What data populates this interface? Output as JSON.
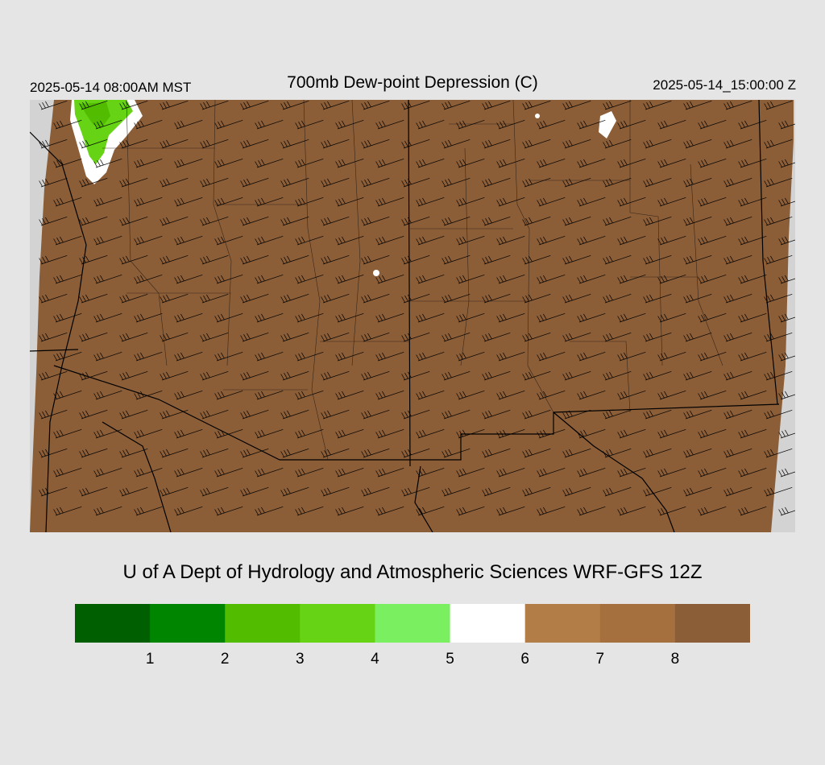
{
  "header": {
    "valid_local": "2025-05-14 08:00AM MST",
    "title": "700mb Dew-point Depression (C)",
    "valid_utc": "2025-05-14_15:00:00 Z"
  },
  "credit": "U of A Dept of Hydrology and Atmospheric Sciences WRF-GFS 12Z",
  "legend": {
    "colors": [
      "#005f00",
      "#008500",
      "#52bd00",
      "#66d314",
      "#7aef5f",
      "#ffffff",
      "#b27d47",
      "#a66f3e",
      "#8b5e38"
    ],
    "tick_labels": [
      "1",
      "2",
      "3",
      "4",
      "5",
      "6",
      "7",
      "8"
    ]
  },
  "map": {
    "fill_color": "#8b5e38",
    "moist_color": "#66d314",
    "dry_background": "#d3d3d3",
    "barb_color": "#000000",
    "grid_lines": "state-and-county-boundaries",
    "wind_barbs": "southwesterly"
  }
}
